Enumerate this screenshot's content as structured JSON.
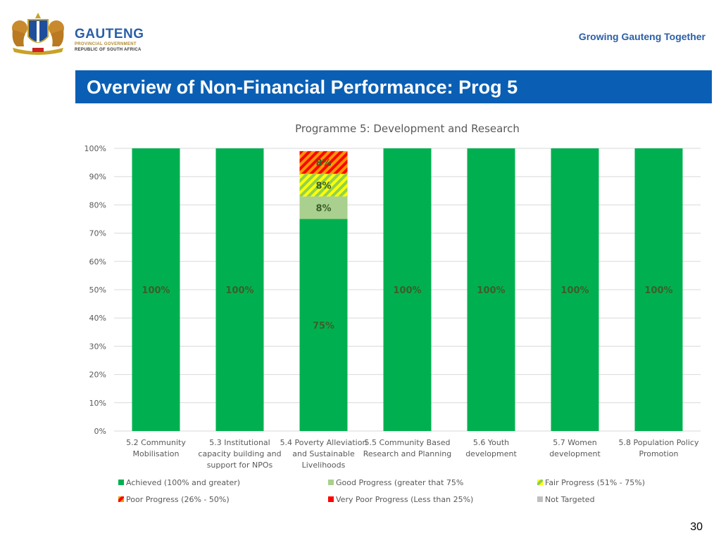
{
  "header": {
    "logo_name": "GAUTENG",
    "logo_sub1": "PROVINCIAL GOVERNMENT",
    "logo_sub2": "REPUBLIC OF SOUTH AFRICA",
    "tagline": "Growing Gauteng Together"
  },
  "slide_title": "Overview of Non-Financial Performance: Prog 5",
  "page_number": "30",
  "chart_data": {
    "type": "bar",
    "stacked": true,
    "title": "Programme 5: Development and Research",
    "ylim": [
      0,
      100
    ],
    "yticks": [
      "0%",
      "10%",
      "20%",
      "30%",
      "40%",
      "50%",
      "60%",
      "70%",
      "80%",
      "90%",
      "100%"
    ],
    "grid": true,
    "legend_position": "bottom",
    "categories": [
      [
        "5.2 Community",
        "Mobilisation"
      ],
      [
        "5.3 Institutional",
        "capacity building and",
        "support for NPOs"
      ],
      [
        "5.4 Poverty Alleviation",
        "and Sustainable",
        "Livelihoods"
      ],
      [
        "5.5 Community Based",
        "Research and Planning"
      ],
      [
        "5.6 Youth",
        "development"
      ],
      [
        "5.7 Women",
        "development"
      ],
      [
        "5.8 Population Policy",
        "Promotion"
      ]
    ],
    "series": [
      {
        "name": "Achieved (100%  and greater)",
        "color": "#00b050",
        "pattern": "solid",
        "values": [
          100,
          100,
          75,
          100,
          100,
          100,
          100
        ],
        "labels": [
          "100%",
          "100%",
          "75%",
          "100%",
          "100%",
          "100%",
          "100%"
        ]
      },
      {
        "name": "Good Progress (greater that 75%",
        "color": "#a9d08e",
        "pattern": "solid",
        "values": [
          0,
          0,
          8,
          0,
          0,
          0,
          0
        ],
        "labels": [
          "",
          "",
          "8%",
          "",
          "",
          "",
          ""
        ]
      },
      {
        "name": "Fair Progress (51% - 75%)",
        "color": "#92d050",
        "color2": "#ffff00",
        "pattern": "stripes",
        "values": [
          0,
          0,
          8,
          0,
          0,
          0,
          0
        ],
        "labels": [
          "",
          "",
          "8%",
          "",
          "",
          "",
          ""
        ]
      },
      {
        "name": "Poor Progress (26% - 50%)",
        "color": "#ff9900",
        "color2": "#ff0000",
        "pattern": "stripes",
        "values": [
          0,
          0,
          8,
          0,
          0,
          0,
          0
        ],
        "labels": [
          "",
          "",
          "8%",
          "",
          "",
          "",
          ""
        ]
      },
      {
        "name": "Very Poor Progress (Less than 25%)",
        "color": "#ff0000",
        "pattern": "solid",
        "values": [
          0,
          0,
          0,
          0,
          0,
          0,
          0
        ],
        "labels": [
          "",
          "",
          "",
          "",
          "",
          "",
          ""
        ]
      },
      {
        "name": "Not Targeted",
        "color": "#bfbfbf",
        "pattern": "solid",
        "values": [
          0,
          0,
          0,
          0,
          0,
          0,
          0
        ],
        "labels": [
          "",
          "",
          "",
          "",
          "",
          "",
          ""
        ]
      }
    ]
  }
}
